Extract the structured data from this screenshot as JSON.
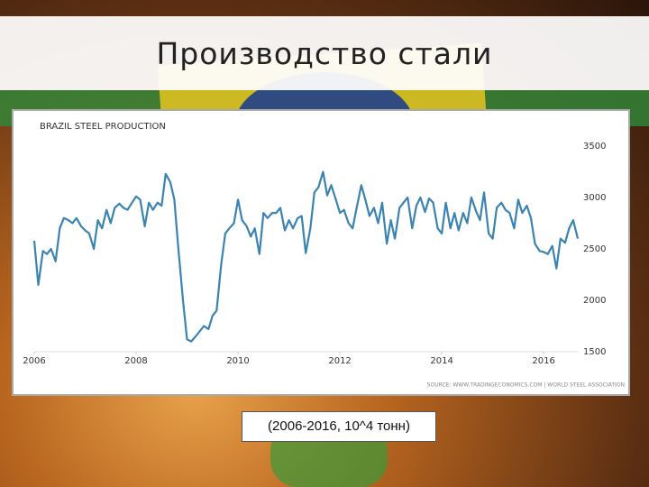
{
  "slide_title": "Производство стали",
  "caption": "(2006-2016, 10^4 тонн)",
  "chart_data": {
    "type": "line",
    "title": "BRAZIL STEEL PRODUCTION",
    "source": "SOURCE: WWW.TRADINGECONOMICS.COM | WORLD STEEL ASSOCIATION",
    "color": "#3b83b0",
    "grid": false,
    "xlim": [
      2006,
      2016.67
    ],
    "xticks": [
      2006,
      2008,
      2010,
      2012,
      2014,
      2016
    ],
    "ylim": [
      1500,
      3500
    ],
    "yticks": [
      1500,
      2000,
      2500,
      3000,
      3500
    ],
    "x": [
      2006,
      2006.08,
      2006.17,
      2006.25,
      2006.33,
      2006.42,
      2006.5,
      2006.58,
      2006.67,
      2006.75,
      2006.83,
      2006.92,
      2007,
      2007.08,
      2007.17,
      2007.25,
      2007.33,
      2007.42,
      2007.5,
      2007.58,
      2007.67,
      2007.75,
      2007.83,
      2007.92,
      2008,
      2008.08,
      2008.17,
      2008.25,
      2008.33,
      2008.42,
      2008.5,
      2008.58,
      2008.67,
      2008.75,
      2008.83,
      2008.92,
      2009,
      2009.08,
      2009.17,
      2009.25,
      2009.33,
      2009.42,
      2009.5,
      2009.58,
      2009.67,
      2009.75,
      2009.83,
      2009.92,
      2010,
      2010.08,
      2010.17,
      2010.25,
      2010.33,
      2010.42,
      2010.5,
      2010.58,
      2010.67,
      2010.75,
      2010.83,
      2010.92,
      2011,
      2011.08,
      2011.17,
      2011.25,
      2011.33,
      2011.42,
      2011.5,
      2011.58,
      2011.67,
      2011.75,
      2011.83,
      2011.92,
      2012,
      2012.08,
      2012.17,
      2012.25,
      2012.33,
      2012.42,
      2012.5,
      2012.58,
      2012.67,
      2012.75,
      2012.83,
      2012.92,
      2013,
      2013.08,
      2013.17,
      2013.25,
      2013.33,
      2013.42,
      2013.5,
      2013.58,
      2013.67,
      2013.75,
      2013.83,
      2013.92,
      2014,
      2014.08,
      2014.17,
      2014.25,
      2014.33,
      2014.42,
      2014.5,
      2014.58,
      2014.67,
      2014.75,
      2014.83,
      2014.92,
      2015,
      2015.08,
      2015.17,
      2015.25,
      2015.33,
      2015.42,
      2015.5,
      2015.58,
      2015.67,
      2015.75,
      2015.83,
      2015.92,
      2016,
      2016.08,
      2016.17,
      2016.25,
      2016.33,
      2016.42,
      2016.5,
      2016.58,
      2016.67
    ],
    "values": [
      2580,
      2150,
      2480,
      2450,
      2500,
      2380,
      2700,
      2800,
      2780,
      2750,
      2800,
      2720,
      2680,
      2650,
      2500,
      2780,
      2700,
      2880,
      2750,
      2900,
      2940,
      2900,
      2880,
      2950,
      3010,
      2980,
      2720,
      2950,
      2880,
      2950,
      2920,
      3230,
      3150,
      2980,
      2500,
      2000,
      1620,
      1600,
      1650,
      1700,
      1750,
      1720,
      1850,
      1900,
      2350,
      2650,
      2700,
      2750,
      2980,
      2780,
      2720,
      2620,
      2700,
      2450,
      2850,
      2800,
      2850,
      2850,
      2900,
      2680,
      2780,
      2700,
      2800,
      2820,
      2460,
      2700,
      3050,
      3100,
      3250,
      3020,
      3120,
      2980,
      2850,
      2880,
      2750,
      2700,
      2900,
      3120,
      2980,
      2820,
      2900,
      2750,
      2950,
      2550,
      2780,
      2600,
      2900,
      2950,
      3000,
      2700,
      2920,
      3000,
      2860,
      2990,
      2950,
      2700,
      2650,
      2950,
      2700,
      2850,
      2680,
      2850,
      2750,
      3000,
      2870,
      2780,
      3050,
      2650,
      2600,
      2900,
      2950,
      2880,
      2850,
      2700,
      2980,
      2850,
      2920,
      2800,
      2550,
      2480,
      2470,
      2450,
      2530,
      2310,
      2600,
      2560,
      2700,
      2780,
      2600
    ]
  }
}
